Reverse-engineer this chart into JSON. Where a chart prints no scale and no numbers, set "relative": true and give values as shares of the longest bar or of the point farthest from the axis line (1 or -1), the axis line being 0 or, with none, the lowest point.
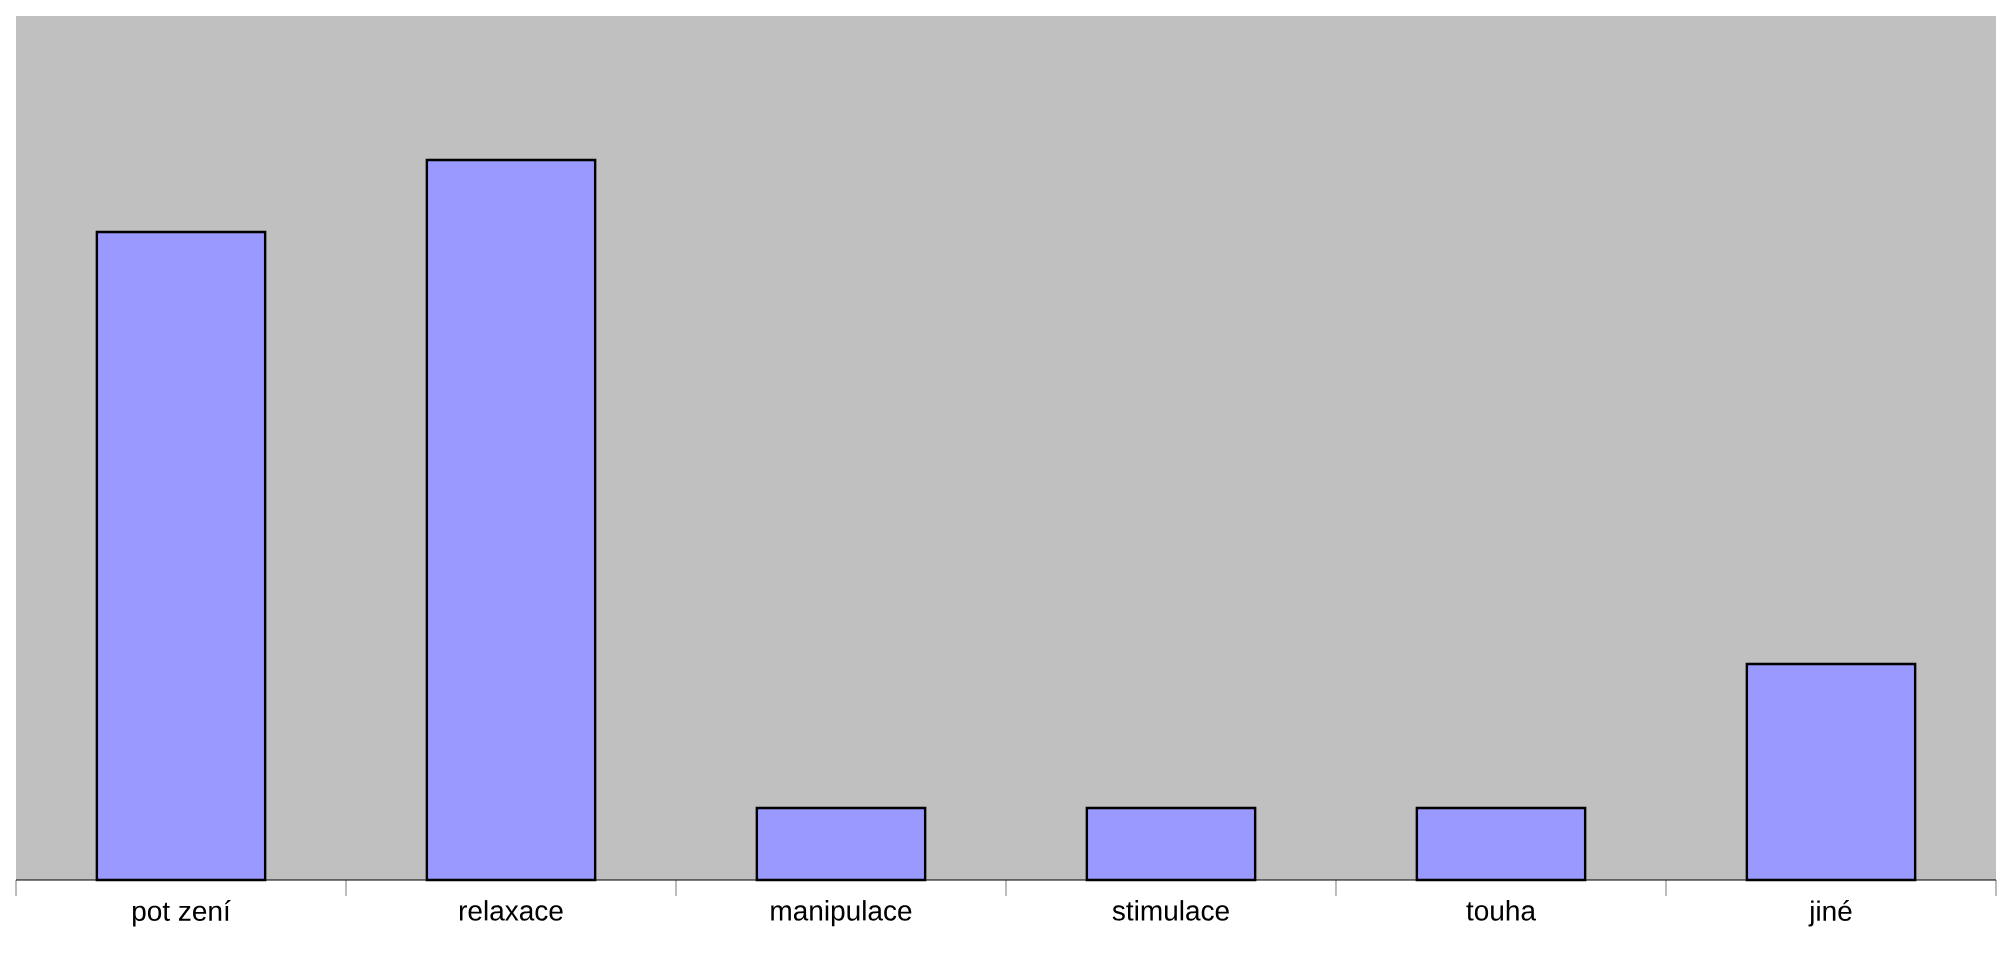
{
  "chart_data": {
    "type": "bar",
    "relative": true,
    "categories": [
      "pot zení",
      "relaxace",
      "manipulace",
      "stimulace",
      "touha",
      "jiné"
    ],
    "values": [
      0.9,
      1,
      0.1,
      0.1,
      0.1,
      0.3
    ],
    "color": "#9999ff"
  }
}
